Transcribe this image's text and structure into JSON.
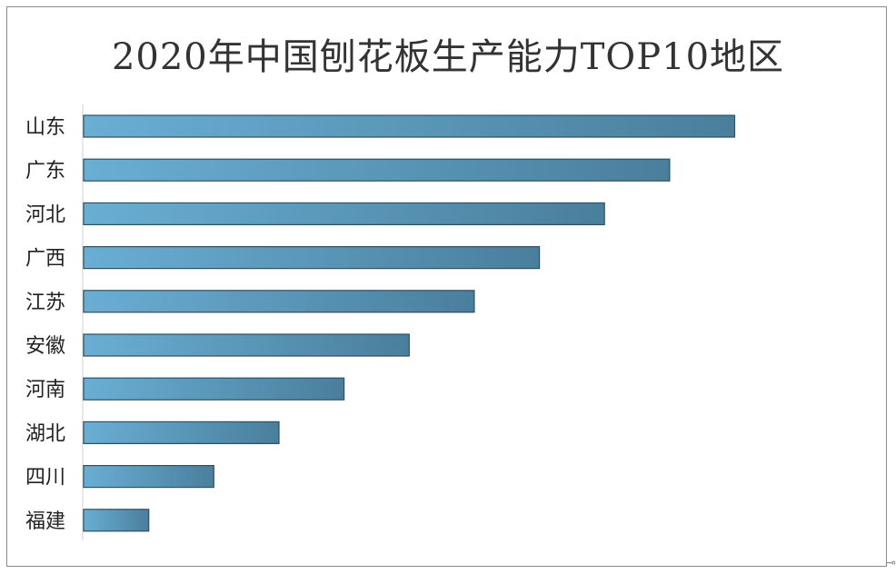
{
  "chart_data": {
    "type": "bar",
    "orientation": "horizontal",
    "title": "2020年中国刨花板生产能力TOP10地区",
    "categories": [
      "山东",
      "广东",
      "河北",
      "广西",
      "江苏",
      "安徽",
      "河南",
      "湖北",
      "四川",
      "福建"
    ],
    "values": [
      10,
      9,
      8,
      7,
      6,
      5,
      4,
      3,
      2,
      1
    ],
    "xlim": [
      0,
      10.3
    ],
    "grid": false,
    "legend": "none",
    "bar_color": "#5b9bbf"
  }
}
